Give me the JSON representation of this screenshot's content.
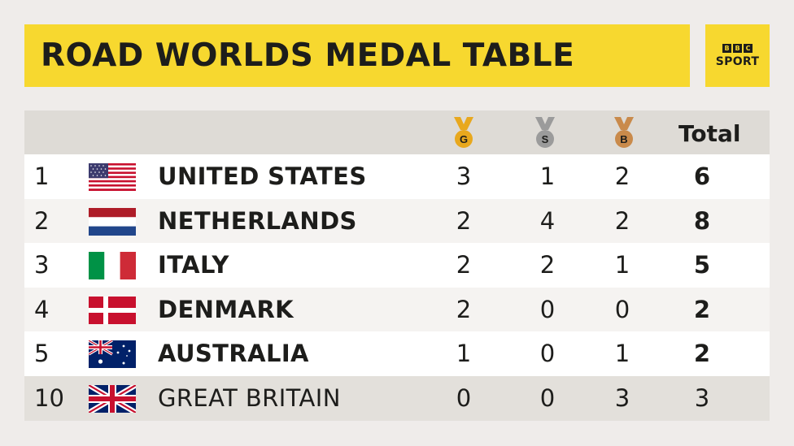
{
  "title": "ROAD WORLDS MEDAL TABLE",
  "logo": {
    "boxes": [
      "B",
      "B",
      "C"
    ],
    "sport": "SPORT"
  },
  "header": {
    "gold_letter": "G",
    "silver_letter": "S",
    "bronze_letter": "B",
    "total_label": "Total"
  },
  "colors": {
    "title_bg": "#f7d82f",
    "gold": "#e8a81e",
    "silver": "#9b9b9b",
    "bronze": "#c98a4b"
  },
  "rows": [
    {
      "rank": "1",
      "country": "UNITED STATES",
      "flag": "us-flag",
      "gold": "3",
      "silver": "1",
      "bronze": "2",
      "total": "6"
    },
    {
      "rank": "2",
      "country": "NETHERLANDS",
      "flag": "nl-flag",
      "gold": "2",
      "silver": "4",
      "bronze": "2",
      "total": "8"
    },
    {
      "rank": "3",
      "country": "ITALY",
      "flag": "it-flag",
      "gold": "2",
      "silver": "2",
      "bronze": "1",
      "total": "5"
    },
    {
      "rank": "4",
      "country": "DENMARK",
      "flag": "dk-flag",
      "gold": "2",
      "silver": "0",
      "bronze": "0",
      "total": "2"
    },
    {
      "rank": "5",
      "country": "AUSTRALIA",
      "flag": "au-flag",
      "gold": "1",
      "silver": "0",
      "bronze": "1",
      "total": "2"
    },
    {
      "rank": "10",
      "country": "GREAT BRITAIN",
      "flag": "gb-flag",
      "gold": "0",
      "silver": "0",
      "bronze": "3",
      "total": "3"
    }
  ]
}
